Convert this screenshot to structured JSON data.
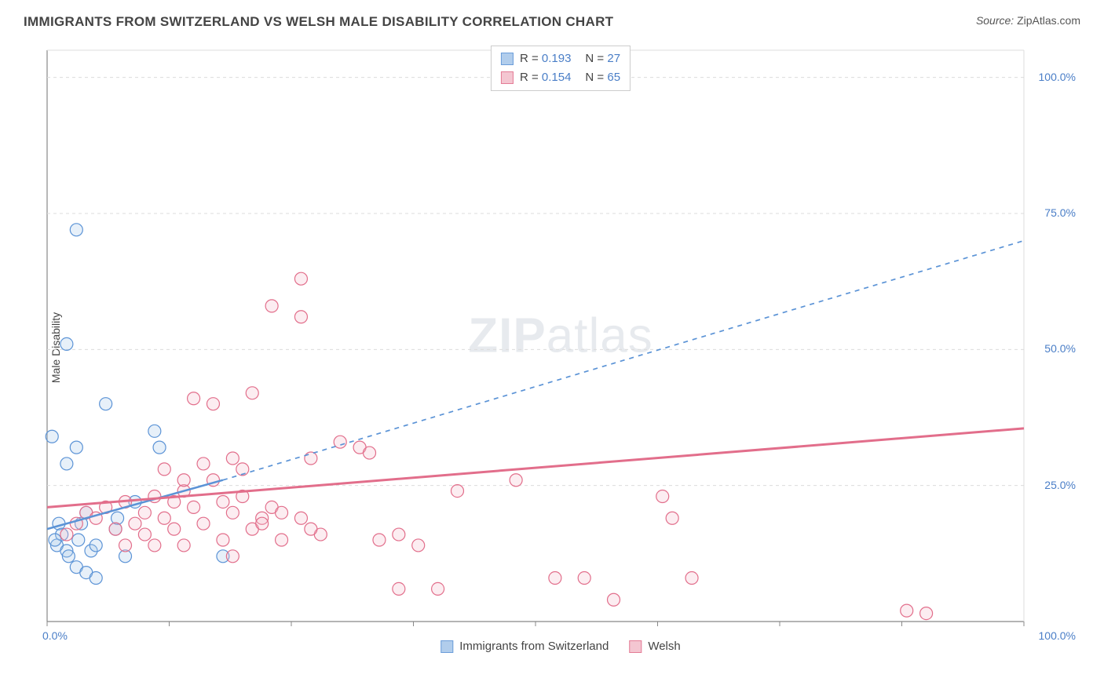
{
  "title": "IMMIGRANTS FROM SWITZERLAND VS WELSH MALE DISABILITY CORRELATION CHART",
  "source_label": "Source:",
  "source_value": "ZipAtlas.com",
  "watermark_zip": "ZIP",
  "watermark_atlas": "atlas",
  "y_axis_label": "Male Disability",
  "chart": {
    "type": "scatter",
    "background_color": "#ffffff",
    "grid_color": "#dcdcdc",
    "grid_dash": "4,4",
    "axis_line_color": "#888888",
    "xlim": [
      0,
      100
    ],
    "ylim": [
      0,
      105
    ],
    "x_ticks_minor_step": 12.5,
    "y_ticks": [
      {
        "v": 25,
        "label": "25.0%"
      },
      {
        "v": 50,
        "label": "50.0%"
      },
      {
        "v": 75,
        "label": "75.0%"
      },
      {
        "v": 100,
        "label": "100.0%"
      }
    ],
    "x_tick_labels": [
      {
        "v": 0,
        "label": "0.0%"
      },
      {
        "v": 100,
        "label": "100.0%"
      }
    ],
    "marker_radius": 8,
    "marker_stroke_width": 1.2,
    "marker_fill_opacity": 0.28,
    "series": [
      {
        "key": "swiss",
        "name": "Immigrants from Switzerland",
        "color": "#5b93d6",
        "fill": "#a9c8ea",
        "R": "0.193",
        "N": "27",
        "points": [
          [
            1,
            14
          ],
          [
            1.2,
            18
          ],
          [
            1.5,
            16
          ],
          [
            0.8,
            15
          ],
          [
            2,
            13
          ],
          [
            2.2,
            12
          ],
          [
            0.5,
            34
          ],
          [
            3,
            32
          ],
          [
            3.2,
            15
          ],
          [
            3.5,
            18
          ],
          [
            4,
            20
          ],
          [
            4.5,
            13
          ],
          [
            5,
            14
          ],
          [
            2,
            51
          ],
          [
            6,
            40
          ],
          [
            7,
            17
          ],
          [
            7.2,
            19
          ],
          [
            8,
            12
          ],
          [
            3,
            10
          ],
          [
            4,
            9
          ],
          [
            5,
            8
          ],
          [
            11,
            35
          ],
          [
            11.5,
            32
          ],
          [
            9,
            22
          ],
          [
            2,
            29
          ],
          [
            3,
            72
          ],
          [
            18,
            12
          ]
        ],
        "trend": {
          "solid": {
            "x1": 0,
            "y1": 17,
            "x2": 18,
            "y2": 26
          },
          "dashed": {
            "x1": 18,
            "y1": 26,
            "x2": 100,
            "y2": 70
          },
          "width": 2.5
        }
      },
      {
        "key": "welsh",
        "name": "Welsh",
        "color": "#e26e8b",
        "fill": "#f3c0cd",
        "R": "0.154",
        "N": "65",
        "points": [
          [
            2,
            16
          ],
          [
            3,
            18
          ],
          [
            4,
            20
          ],
          [
            5,
            19
          ],
          [
            6,
            21
          ],
          [
            7,
            17
          ],
          [
            8,
            22
          ],
          [
            9,
            18
          ],
          [
            10,
            20
          ],
          [
            11,
            23
          ],
          [
            12,
            19
          ],
          [
            13,
            22
          ],
          [
            14,
            24
          ],
          [
            15,
            21
          ],
          [
            16,
            18
          ],
          [
            17,
            26
          ],
          [
            18,
            22
          ],
          [
            19,
            20
          ],
          [
            20,
            23
          ],
          [
            21,
            17
          ],
          [
            22,
            19
          ],
          [
            23,
            21
          ],
          [
            12,
            28
          ],
          [
            14,
            26
          ],
          [
            16,
            29
          ],
          [
            15,
            41
          ],
          [
            17,
            40
          ],
          [
            19,
            30
          ],
          [
            20,
            28
          ],
          [
            22,
            18
          ],
          [
            24,
            20
          ],
          [
            26,
            19
          ],
          [
            21,
            42
          ],
          [
            23,
            58
          ],
          [
            24,
            15
          ],
          [
            26,
            56
          ],
          [
            26,
            63
          ],
          [
            27,
            30
          ],
          [
            28,
            16
          ],
          [
            30,
            33
          ],
          [
            32,
            32
          ],
          [
            33,
            31
          ],
          [
            34,
            15
          ],
          [
            36,
            6
          ],
          [
            40,
            6
          ],
          [
            38,
            14
          ],
          [
            42,
            24
          ],
          [
            48,
            26
          ],
          [
            52,
            8
          ],
          [
            55,
            8
          ],
          [
            58,
            4
          ],
          [
            63,
            23
          ],
          [
            64,
            19
          ],
          [
            66,
            8
          ],
          [
            88,
            2
          ],
          [
            90,
            1.5
          ],
          [
            8,
            14
          ],
          [
            10,
            16
          ],
          [
            11,
            14
          ],
          [
            13,
            17
          ],
          [
            14,
            14
          ],
          [
            18,
            15
          ],
          [
            19,
            12
          ],
          [
            36,
            16
          ],
          [
            27,
            17
          ]
        ],
        "trend": {
          "solid": {
            "x1": 0,
            "y1": 21,
            "x2": 100,
            "y2": 35.5
          },
          "width": 3
        }
      }
    ],
    "legend_top_labels": {
      "R": "R =",
      "N": "N ="
    }
  }
}
